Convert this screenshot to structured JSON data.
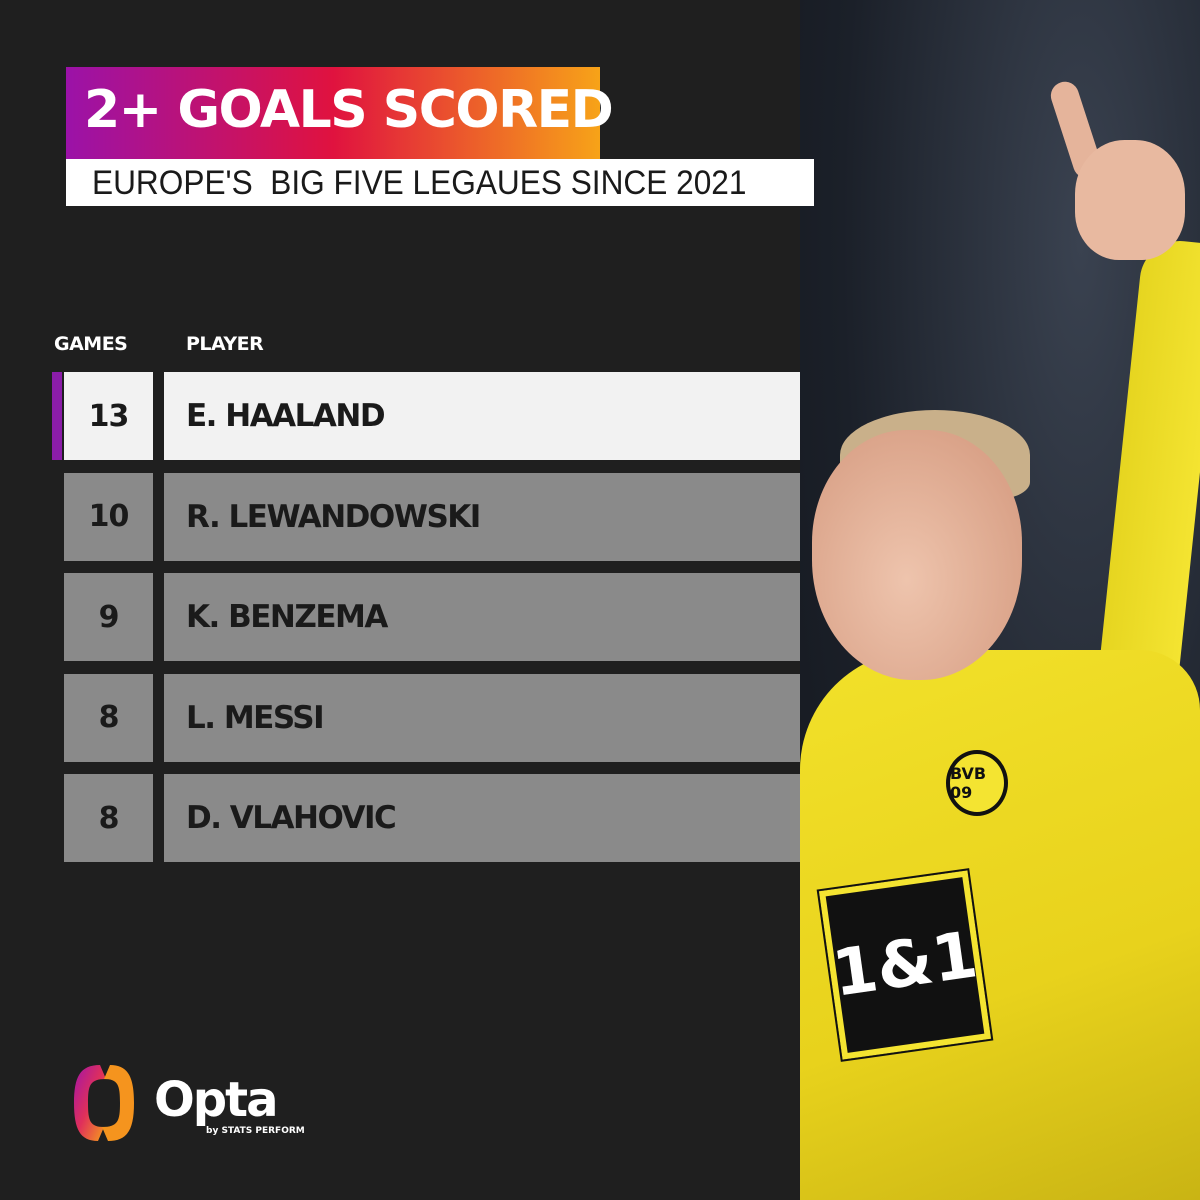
{
  "header": {
    "title": "2+ GOALS SCORED",
    "subtitle": "EUROPE'S  BIG FIVE LEGAUES SINCE 2021"
  },
  "table": {
    "col_games": "GAMES",
    "col_player": "PLAYER"
  },
  "chart_data": {
    "type": "table",
    "title": "2+ GOALS SCORED",
    "subtitle": "EUROPE'S  BIG FIVE LEGAUES SINCE 2021",
    "columns": [
      "GAMES",
      "PLAYER"
    ],
    "rows": [
      {
        "games": "13",
        "player": "E. HAALAND"
      },
      {
        "games": "10",
        "player": "R. LEWANDOWSKI"
      },
      {
        "games": "9",
        "player": "K. BENZEMA"
      },
      {
        "games": "8",
        "player": "L. MESSI"
      },
      {
        "games": "8",
        "player": "D. VLAHOVIC"
      }
    ],
    "highlight_row": 0,
    "colors": {
      "highlight": "#f2f2f2",
      "row": "#8a8a8a",
      "accent": "#8b1da8",
      "gradient": [
        "#9b12a8",
        "#e0123f",
        "#f7a318"
      ]
    }
  },
  "photo": {
    "badge": "BVB 09",
    "sponsor": "1&1"
  },
  "brand": {
    "name": "Opta",
    "tagline": "by STATS PERFORM"
  }
}
